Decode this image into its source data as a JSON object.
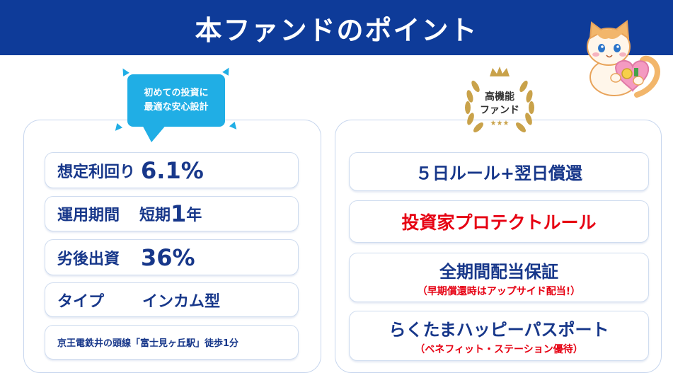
{
  "header": {
    "title": "本ファンドのポイント"
  },
  "bubble": {
    "line1": "初めての投資に",
    "line2": "最適な安心設計"
  },
  "badge": {
    "line1": "高機能",
    "line2": "ファンド",
    "stars": "★★★"
  },
  "left_items": {
    "yield_label": "想定利回り",
    "yield_value": "6.1%",
    "period_label": "運用期間",
    "period_text1": "短期",
    "period_value": "1",
    "period_text2": "年",
    "sub_label": "劣後出資",
    "sub_value": "36%",
    "type_label": "タイプ",
    "type_value": "インカム型",
    "location": "京王電鉄井の頭線「富士見ヶ丘駅」徒歩1分"
  },
  "right_items": {
    "rule5": "５日ルール+翌日償還",
    "protect": "投資家プロテクトルール",
    "dividend": "全期間配当保証",
    "dividend_sub": "（早期償還時はアップサイド配当!）",
    "passport": "らくたまハッピーパスポート",
    "passport_sub": "（ベネフィット・ステーション優待）"
  },
  "colors": {
    "header_bg": "#0e3b99",
    "text_navy": "#17378a",
    "accent_red": "#e60012",
    "bubble_blue": "#20aee5",
    "gold": "#c9a24a"
  }
}
